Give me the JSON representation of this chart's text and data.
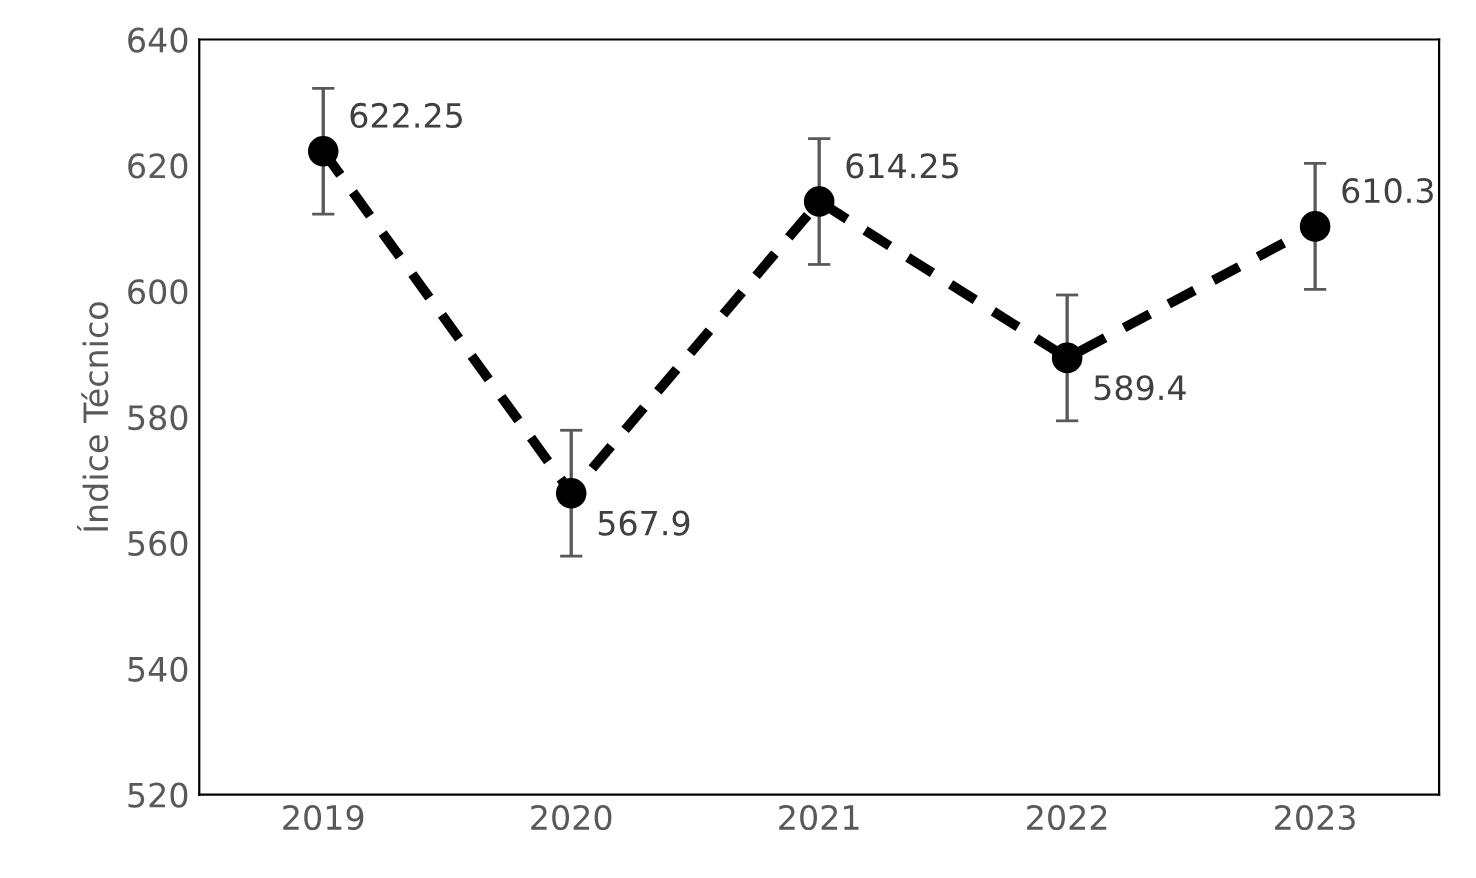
{
  "chart_data": {
    "type": "line",
    "ylabel": "Índice Técnico",
    "categories": [
      "2019",
      "2020",
      "2021",
      "2022",
      "2023"
    ],
    "series": [
      {
        "color": "#000000",
        "values": [
          622.25,
          567.9,
          614.25,
          589.4,
          610.3
        ],
        "errors": [
          10,
          10,
          10,
          10,
          10
        ]
      }
    ],
    "ylim": [
      520,
      640
    ],
    "yticks": [
      520,
      540,
      560,
      580,
      600,
      620,
      640
    ],
    "marker": "circle",
    "line_style": "dashed",
    "data_labels": true,
    "grid": false,
    "legend": false
  }
}
